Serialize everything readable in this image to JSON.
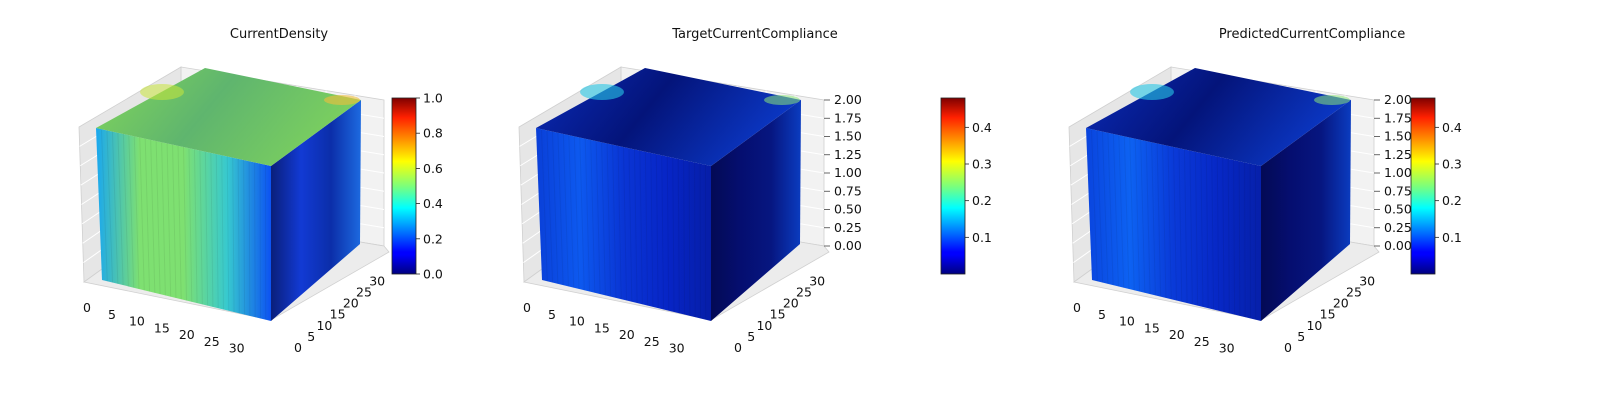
{
  "chart_data": [
    {
      "type": "surface3d",
      "title": "CurrentDensity",
      "x_ticks": [
        "0",
        "5",
        "10",
        "15",
        "20",
        "25",
        "30"
      ],
      "y_ticks": [
        "0",
        "5",
        "10",
        "15",
        "20",
        "25",
        "30"
      ],
      "xlim": [
        0,
        32
      ],
      "ylim": [
        0,
        32
      ],
      "colorbar": {
        "ticks": [
          "0.0",
          "0.2",
          "0.4",
          "0.6",
          "0.8",
          "1.0"
        ],
        "range": [
          0,
          1.0
        ],
        "cmap": "jet"
      }
    },
    {
      "type": "surface3d",
      "title": "TargetCurrentCompliance",
      "x_ticks": [
        "0",
        "5",
        "10",
        "15",
        "20",
        "25",
        "30"
      ],
      "y_ticks": [
        "0",
        "5",
        "10",
        "15",
        "20",
        "25",
        "30"
      ],
      "z_ticks": [
        "0.00",
        "0.25",
        "0.50",
        "0.75",
        "1.00",
        "1.25",
        "1.50",
        "1.75",
        "2.00"
      ],
      "xlim": [
        0,
        32
      ],
      "ylim": [
        0,
        32
      ],
      "zlim": [
        0,
        2.0
      ],
      "colorbar": {
        "ticks": [
          "0.1",
          "0.2",
          "0.3",
          "0.4"
        ],
        "range": [
          0.0,
          0.48
        ],
        "cmap": "jet"
      }
    },
    {
      "type": "surface3d",
      "title": "PredictedCurrentCompliance",
      "x_ticks": [
        "0",
        "5",
        "10",
        "15",
        "20",
        "25",
        "30"
      ],
      "y_ticks": [
        "0",
        "5",
        "10",
        "15",
        "20",
        "25",
        "30"
      ],
      "z_ticks": [
        "0.00",
        "0.25",
        "0.50",
        "0.75",
        "1.00",
        "1.25",
        "1.50",
        "1.75",
        "2.00"
      ],
      "xlim": [
        0,
        32
      ],
      "ylim": [
        0,
        32
      ],
      "zlim": [
        0,
        2.0
      ],
      "colorbar": {
        "ticks": [
          "0.1",
          "0.2",
          "0.3",
          "0.4"
        ],
        "range": [
          0.0,
          0.48
        ],
        "cmap": "jet"
      }
    }
  ]
}
